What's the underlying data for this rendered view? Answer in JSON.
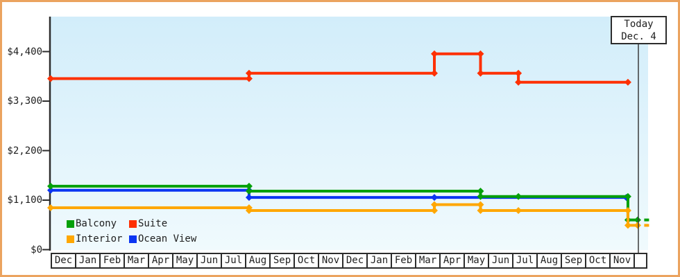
{
  "frame": {
    "border_color": "#eba35f"
  },
  "today": {
    "line1": "Today",
    "line2": "Dec. 4",
    "month_offset": 24.2
  },
  "chart_data": {
    "type": "line",
    "title": "",
    "xlabel": "",
    "ylabel": "",
    "ylim": [
      0,
      4400
    ],
    "grid": false,
    "legend_position": "bottom-left",
    "y_axis": {
      "ticks": [
        {
          "label": "$0",
          "value": 0
        },
        {
          "label": "$1,100",
          "value": 1100
        },
        {
          "label": "$2,200",
          "value": 2200
        },
        {
          "label": "$3,300",
          "value": 3300
        },
        {
          "label": "$4,400",
          "value": 4400
        }
      ]
    },
    "x_axis": {
      "months": [
        "Dec",
        "Jan",
        "Feb",
        "Mar",
        "Apr",
        "May",
        "Jun",
        "Jul",
        "Aug",
        "Sep",
        "Oct",
        "Nov",
        "Dec",
        "Jan",
        "Feb",
        "Mar",
        "Apr",
        "May",
        "Jun",
        "Jul",
        "Aug",
        "Sep",
        "Oct",
        "Nov"
      ],
      "note_month_offset_unit": "0 = first Dec at left axis, 1 month per unit"
    },
    "series": [
      {
        "name": "Balcony",
        "color": "#05a00a",
        "points": [
          [
            0,
            1410
          ],
          [
            8.17,
            1410
          ],
          [
            8.17,
            1300
          ],
          [
            17.7,
            1300
          ],
          [
            17.7,
            1180
          ],
          [
            19.26,
            1180
          ],
          [
            23.77,
            1180
          ],
          [
            23.77,
            660
          ],
          [
            24.17,
            660
          ]
        ],
        "stub": [
          [
            24.44,
            660
          ],
          [
            24.64,
            660
          ]
        ]
      },
      {
        "name": "Suite",
        "color": "#fe3002",
        "points": [
          [
            0,
            3800
          ],
          [
            8.17,
            3800
          ],
          [
            8.17,
            3920
          ],
          [
            15.8,
            3920
          ],
          [
            15.8,
            4350
          ],
          [
            17.7,
            4350
          ],
          [
            17.7,
            3920
          ],
          [
            19.26,
            3920
          ],
          [
            19.26,
            3720
          ],
          [
            23.77,
            3720
          ]
        ]
      },
      {
        "name": "Interior",
        "color": "#ffa701",
        "points": [
          [
            0,
            930
          ],
          [
            8.17,
            930
          ],
          [
            8.17,
            870
          ],
          [
            15.8,
            870
          ],
          [
            15.8,
            1000
          ],
          [
            17.7,
            1000
          ],
          [
            17.7,
            870
          ],
          [
            19.26,
            870
          ],
          [
            23.77,
            870
          ],
          [
            23.77,
            540
          ],
          [
            24.17,
            540
          ]
        ],
        "stub": [
          [
            24.44,
            540
          ],
          [
            24.64,
            540
          ]
        ]
      },
      {
        "name": "Ocean View",
        "color": "#0b35f2",
        "points": [
          [
            0,
            1320
          ],
          [
            8.17,
            1320
          ],
          [
            8.17,
            1160
          ],
          [
            15.8,
            1160
          ],
          [
            23.7,
            1160
          ]
        ]
      }
    ],
    "draw_order": [
      3,
      0,
      2,
      1
    ]
  }
}
